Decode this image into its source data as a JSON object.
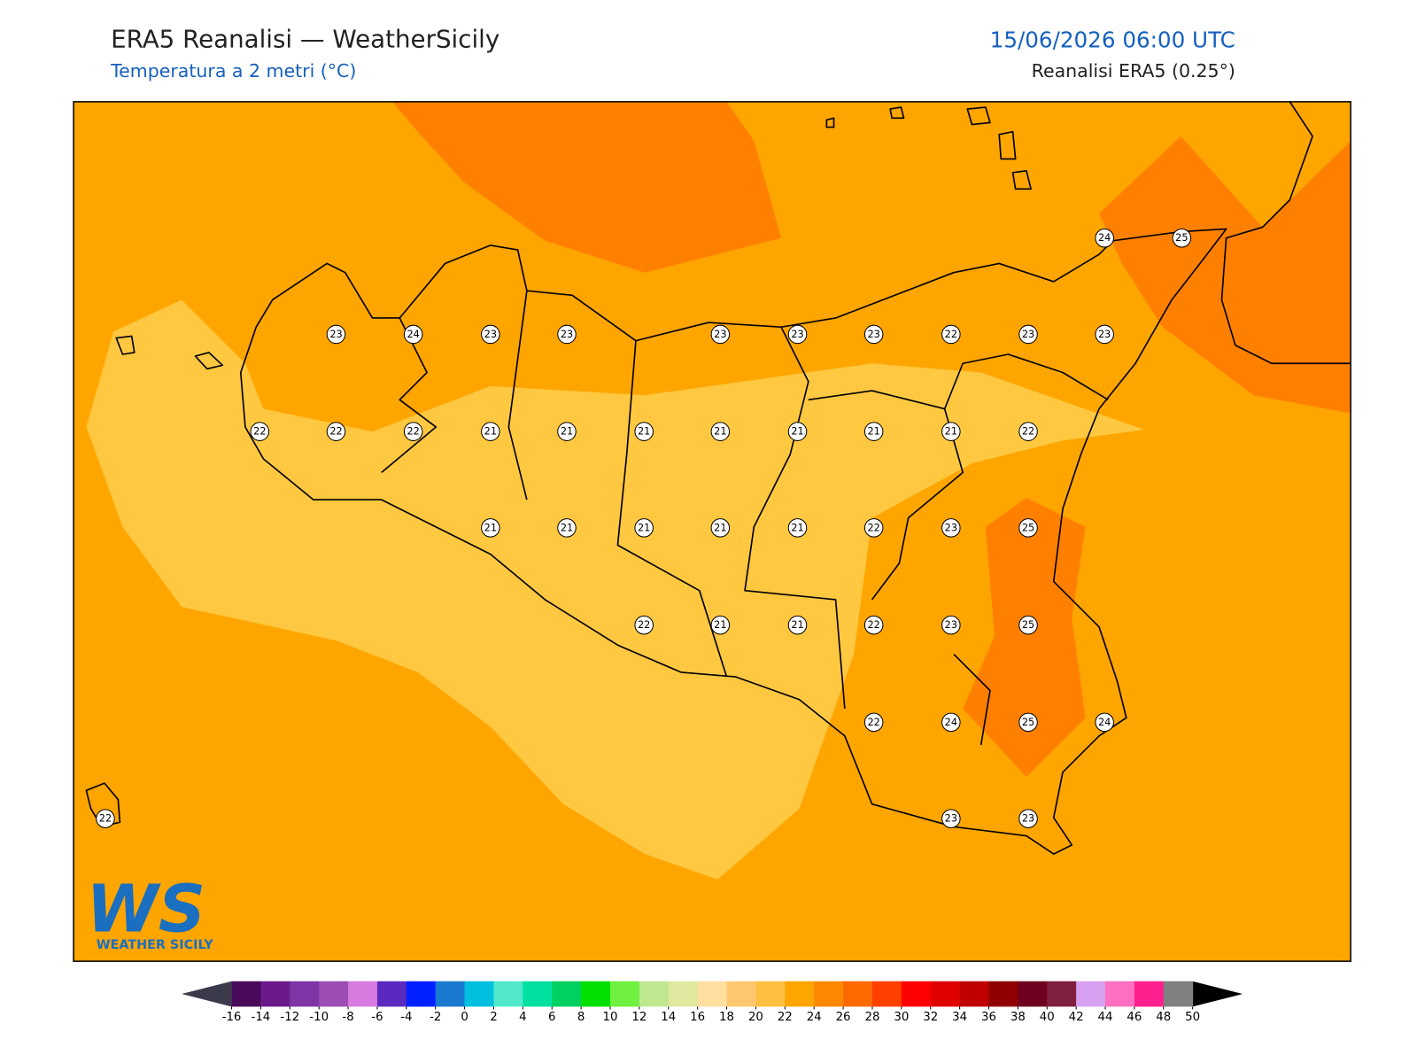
{
  "header": {
    "title": "ERA5 Reanalisi — WeatherSicily",
    "subtitle": "Temperatura a 2 metri (°C)",
    "datetime": "15/06/2026 06:00 UTC",
    "source": "Reanalisi ERA5 (0.25°)"
  },
  "stations": [
    24,
    25,
    23,
    24,
    23,
    23,
    23,
    23,
    23,
    22,
    23,
    23,
    22,
    22,
    22,
    21,
    21,
    21,
    21,
    21,
    21,
    21,
    22,
    21,
    21,
    21,
    21,
    21,
    22,
    23,
    25,
    22,
    21,
    21,
    22,
    23,
    25,
    22,
    24,
    25,
    24,
    22,
    23,
    23
  ],
  "colorbar": {
    "ticks": [
      -16,
      -14,
      -12,
      -10,
      -8,
      -6,
      -4,
      -2,
      0,
      2,
      4,
      6,
      8,
      10,
      12,
      14,
      16,
      18,
      20,
      22,
      24,
      26,
      28,
      30,
      32,
      34,
      36,
      38,
      40,
      42,
      44,
      46,
      48,
      50
    ],
    "colors": [
      "#4a0a5a",
      "#6b1a8a",
      "#7e35a5",
      "#9b4db5",
      "#d77be0",
      "#5a2ac0",
      "#0020ff",
      "#1a7ad0",
      "#00c0e0",
      "#50e8c8",
      "#00e0a0",
      "#00d060",
      "#00e000",
      "#70f040",
      "#c0e890",
      "#e0e8a0",
      "#ffe0a0",
      "#ffc870",
      "#ffc040",
      "#ffa500",
      "#ff8800",
      "#ff6a00",
      "#ff4000",
      "#ff0000",
      "#e00000",
      "#c00000",
      "#900000",
      "#700020",
      "#802040",
      "#d8a0f0",
      "#ff70c0",
      "#ff2090",
      "#808080",
      "#303030"
    ]
  },
  "logo": {
    "mark": "WS",
    "text": "WEATHER SICILY"
  }
}
